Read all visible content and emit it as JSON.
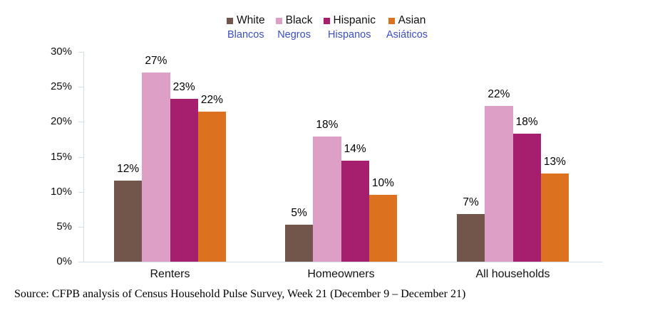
{
  "chart_data": {
    "type": "bar",
    "title": "",
    "categories": [
      "Renters",
      "Homeowners",
      "All households"
    ],
    "series": [
      {
        "name": "White",
        "name_es": "Blancos",
        "color": "#72564B",
        "values": [
          11.6,
          5.3,
          6.8
        ],
        "labels": [
          "12%",
          "5%",
          "7%"
        ]
      },
      {
        "name": "Black",
        "name_es": "Negros",
        "color": "#DE9FC7",
        "values": [
          27.1,
          17.9,
          22.3
        ],
        "labels": [
          "27%",
          "18%",
          "22%"
        ]
      },
      {
        "name": "Hispanic",
        "name_es": "Hispanos",
        "color": "#A61E6E",
        "values": [
          23.3,
          14.4,
          18.3
        ],
        "labels": [
          "23%",
          "14%",
          "18%"
        ]
      },
      {
        "name": "Asian",
        "name_es": "Asiáticos",
        "color": "#DC721F",
        "values": [
          21.5,
          9.6,
          12.6
        ],
        "labels": [
          "22%",
          "10%",
          "13%"
        ]
      }
    ],
    "ylim": [
      0,
      30
    ],
    "y_ticks": [
      "0%",
      "5%",
      "10%",
      "15%",
      "20%",
      "25%",
      "30%"
    ],
    "xlabel": "",
    "ylabel": "",
    "grid": false,
    "legend_position": "top-center"
  },
  "source": "Source: CFPB analysis of Census Household Pulse Survey, Week 21 (December 9 – December 21)",
  "colors": {
    "axis_line": "#D3DDE6",
    "spanish_label_text": "#3B4EC1",
    "text": "#111111",
    "background": "#FFFFFF"
  }
}
